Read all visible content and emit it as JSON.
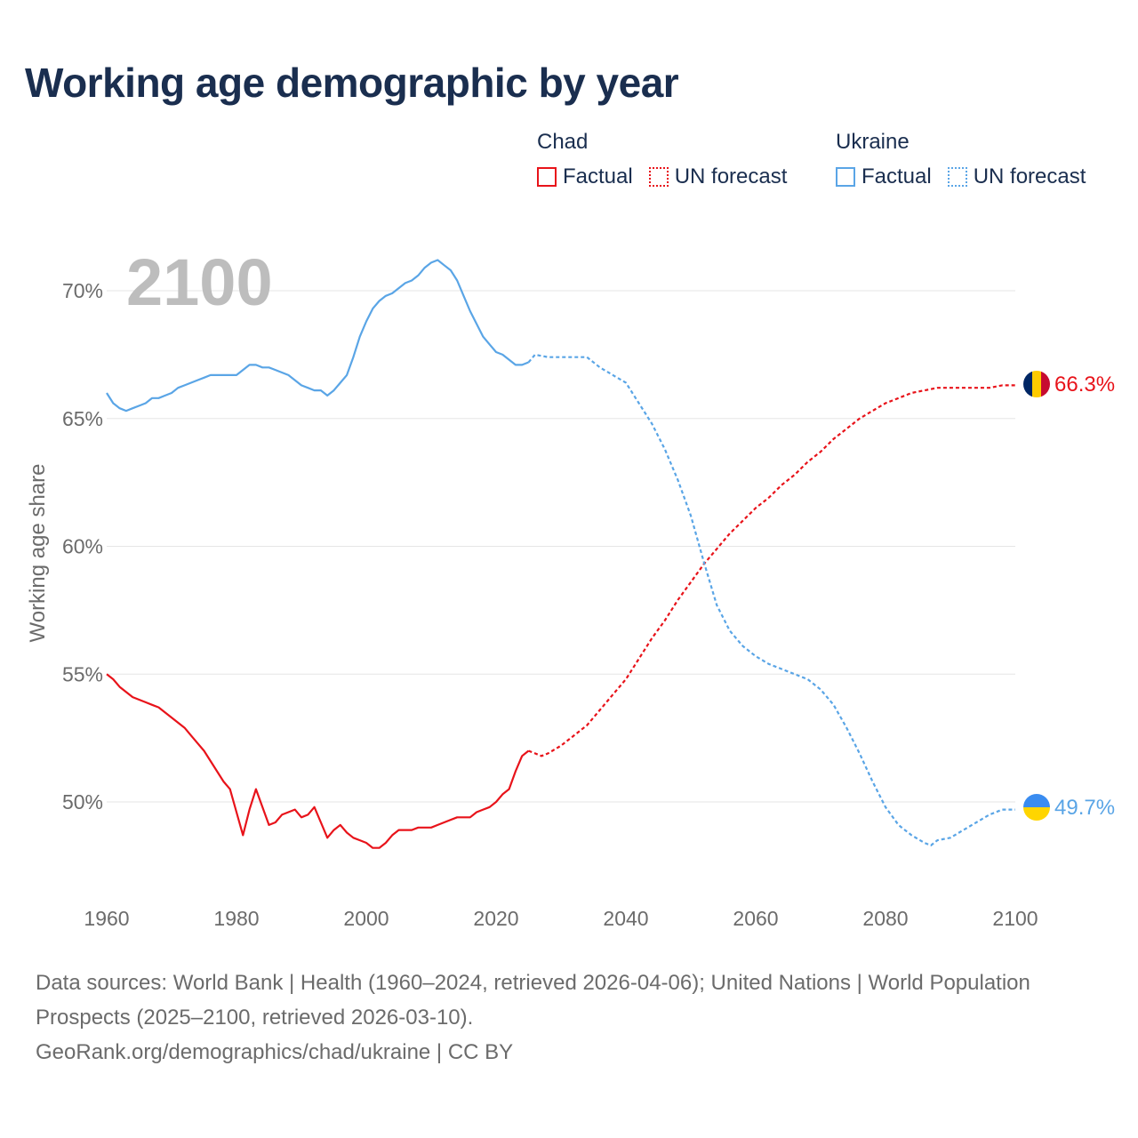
{
  "title": "Working age demographic by year",
  "year_watermark": "2100",
  "legend": {
    "groups": [
      {
        "name": "Chad",
        "color": "#e8131a",
        "items": [
          {
            "label": "Factual",
            "style": "solid"
          },
          {
            "label": "UN forecast",
            "style": "dotted"
          }
        ]
      },
      {
        "name": "Ukraine",
        "color": "#5aa5e6",
        "items": [
          {
            "label": "Factual",
            "style": "solid"
          },
          {
            "label": "UN forecast",
            "style": "dotted"
          }
        ]
      }
    ]
  },
  "end_labels": {
    "chad": "66.3%",
    "ukraine": "49.7%"
  },
  "footer": {
    "line1": "Data sources: World Bank | Health (1960–2024, retrieved 2026-04-06); United Nations | World Population Prospects (2025–2100, retrieved 2026-03-10).",
    "line2": "GeoRank.org/demographics/chad/ukraine | CC BY"
  },
  "chart_data": {
    "type": "line",
    "title": "Working age demographic by year",
    "xlabel": "",
    "ylabel": "Working age share",
    "xlim": [
      1960,
      2100
    ],
    "ylim": [
      46.5,
      72
    ],
    "x_ticks": [
      1960,
      1980,
      2000,
      2020,
      2040,
      2060,
      2080,
      2100
    ],
    "x_tick_labels": [
      "1960",
      "1980",
      "2000",
      "2020",
      "2040",
      "2060",
      "2080",
      "2100"
    ],
    "y_ticks": [
      50,
      55,
      60,
      65,
      70
    ],
    "y_tick_labels": [
      "50%",
      "55%",
      "60%",
      "65%",
      "70%"
    ],
    "grid": "horizontal",
    "series": [
      {
        "name": "Chad",
        "part": "Factual",
        "style": "solid",
        "color": "#e8131a",
        "x": [
          1960,
          1961,
          1962,
          1963,
          1964,
          1965,
          1966,
          1967,
          1968,
          1969,
          1970,
          1971,
          1972,
          1973,
          1974,
          1975,
          1976,
          1977,
          1978,
          1979,
          1980,
          1981,
          1982,
          1983,
          1984,
          1985,
          1986,
          1987,
          1988,
          1989,
          1990,
          1991,
          1992,
          1993,
          1994,
          1995,
          1996,
          1997,
          1998,
          1999,
          2000,
          2001,
          2002,
          2003,
          2004,
          2005,
          2006,
          2007,
          2008,
          2009,
          2010,
          2011,
          2012,
          2013,
          2014,
          2015,
          2016,
          2017,
          2018,
          2019,
          2020,
          2021,
          2022,
          2023,
          2024,
          2025
        ],
        "y": [
          55.0,
          54.8,
          54.5,
          54.3,
          54.1,
          54.0,
          53.9,
          53.8,
          53.7,
          53.5,
          53.3,
          53.1,
          52.9,
          52.6,
          52.3,
          52.0,
          51.6,
          51.2,
          50.8,
          50.5,
          49.6,
          48.7,
          49.7,
          50.5,
          49.8,
          49.1,
          49.2,
          49.5,
          49.6,
          49.7,
          49.4,
          49.5,
          49.8,
          49.2,
          48.6,
          48.9,
          49.1,
          48.8,
          48.6,
          48.5,
          48.4,
          48.2,
          48.2,
          48.4,
          48.7,
          48.9,
          48.9,
          48.9,
          49.0,
          49.0,
          49.0,
          49.1,
          49.2,
          49.3,
          49.4,
          49.4,
          49.4,
          49.6,
          49.7,
          49.8,
          50.0,
          50.3,
          50.5,
          51.2,
          51.8,
          52.0
        ]
      },
      {
        "name": "Chad",
        "part": "UN forecast",
        "style": "dotted",
        "color": "#e8131a",
        "x": [
          2025,
          2026,
          2027,
          2028,
          2030,
          2032,
          2034,
          2036,
          2038,
          2040,
          2042,
          2044,
          2046,
          2048,
          2050,
          2052,
          2054,
          2056,
          2058,
          2060,
          2062,
          2064,
          2066,
          2068,
          2070,
          2072,
          2074,
          2076,
          2078,
          2080,
          2082,
          2084,
          2086,
          2088,
          2090,
          2092,
          2094,
          2096,
          2098,
          2100
        ],
        "y": [
          52.0,
          51.9,
          51.8,
          51.9,
          52.2,
          52.6,
          53.0,
          53.6,
          54.2,
          54.8,
          55.6,
          56.4,
          57.1,
          57.9,
          58.6,
          59.3,
          59.9,
          60.5,
          61.0,
          61.5,
          61.9,
          62.4,
          62.8,
          63.3,
          63.7,
          64.2,
          64.6,
          65.0,
          65.3,
          65.6,
          65.8,
          66.0,
          66.1,
          66.2,
          66.2,
          66.2,
          66.2,
          66.2,
          66.3,
          66.3
        ]
      },
      {
        "name": "Ukraine",
        "part": "Factual",
        "style": "solid",
        "color": "#5aa5e6",
        "x": [
          1960,
          1961,
          1962,
          1963,
          1964,
          1965,
          1966,
          1967,
          1968,
          1969,
          1970,
          1971,
          1972,
          1973,
          1974,
          1975,
          1976,
          1977,
          1978,
          1979,
          1980,
          1981,
          1982,
          1983,
          1984,
          1985,
          1986,
          1987,
          1988,
          1989,
          1990,
          1991,
          1992,
          1993,
          1994,
          1995,
          1996,
          1997,
          1998,
          1999,
          2000,
          2001,
          2002,
          2003,
          2004,
          2005,
          2006,
          2007,
          2008,
          2009,
          2010,
          2011,
          2012,
          2013,
          2014,
          2015,
          2016,
          2017,
          2018,
          2019,
          2020,
          2021,
          2022,
          2023,
          2024,
          2025
        ],
        "y": [
          66.0,
          65.6,
          65.4,
          65.3,
          65.4,
          65.5,
          65.6,
          65.8,
          65.8,
          65.9,
          66.0,
          66.2,
          66.3,
          66.4,
          66.5,
          66.6,
          66.7,
          66.7,
          66.7,
          66.7,
          66.7,
          66.9,
          67.1,
          67.1,
          67.0,
          67.0,
          66.9,
          66.8,
          66.7,
          66.5,
          66.3,
          66.2,
          66.1,
          66.1,
          65.9,
          66.1,
          66.4,
          66.7,
          67.4,
          68.2,
          68.8,
          69.3,
          69.6,
          69.8,
          69.9,
          70.1,
          70.3,
          70.4,
          70.6,
          70.9,
          71.1,
          71.2,
          71.0,
          70.8,
          70.4,
          69.8,
          69.2,
          68.7,
          68.2,
          67.9,
          67.6,
          67.5,
          67.3,
          67.1,
          67.1,
          67.2
        ]
      },
      {
        "name": "Ukraine",
        "part": "UN forecast",
        "style": "dotted",
        "color": "#5aa5e6",
        "x": [
          2025,
          2026,
          2028,
          2030,
          2032,
          2034,
          2036,
          2038,
          2040,
          2042,
          2044,
          2046,
          2048,
          2050,
          2052,
          2054,
          2056,
          2058,
          2060,
          2062,
          2064,
          2066,
          2068,
          2070,
          2072,
          2074,
          2076,
          2078,
          2080,
          2082,
          2084,
          2086,
          2087,
          2088,
          2090,
          2092,
          2094,
          2096,
          2098,
          2100
        ],
        "y": [
          67.2,
          67.5,
          67.4,
          67.4,
          67.4,
          67.4,
          67.0,
          66.7,
          66.4,
          65.6,
          64.8,
          63.8,
          62.6,
          61.2,
          59.4,
          57.7,
          56.7,
          56.1,
          55.7,
          55.4,
          55.2,
          55.0,
          54.8,
          54.4,
          53.8,
          52.9,
          51.9,
          50.8,
          49.8,
          49.1,
          48.7,
          48.4,
          48.3,
          48.5,
          48.6,
          48.9,
          49.2,
          49.5,
          49.7,
          49.7
        ]
      }
    ]
  }
}
